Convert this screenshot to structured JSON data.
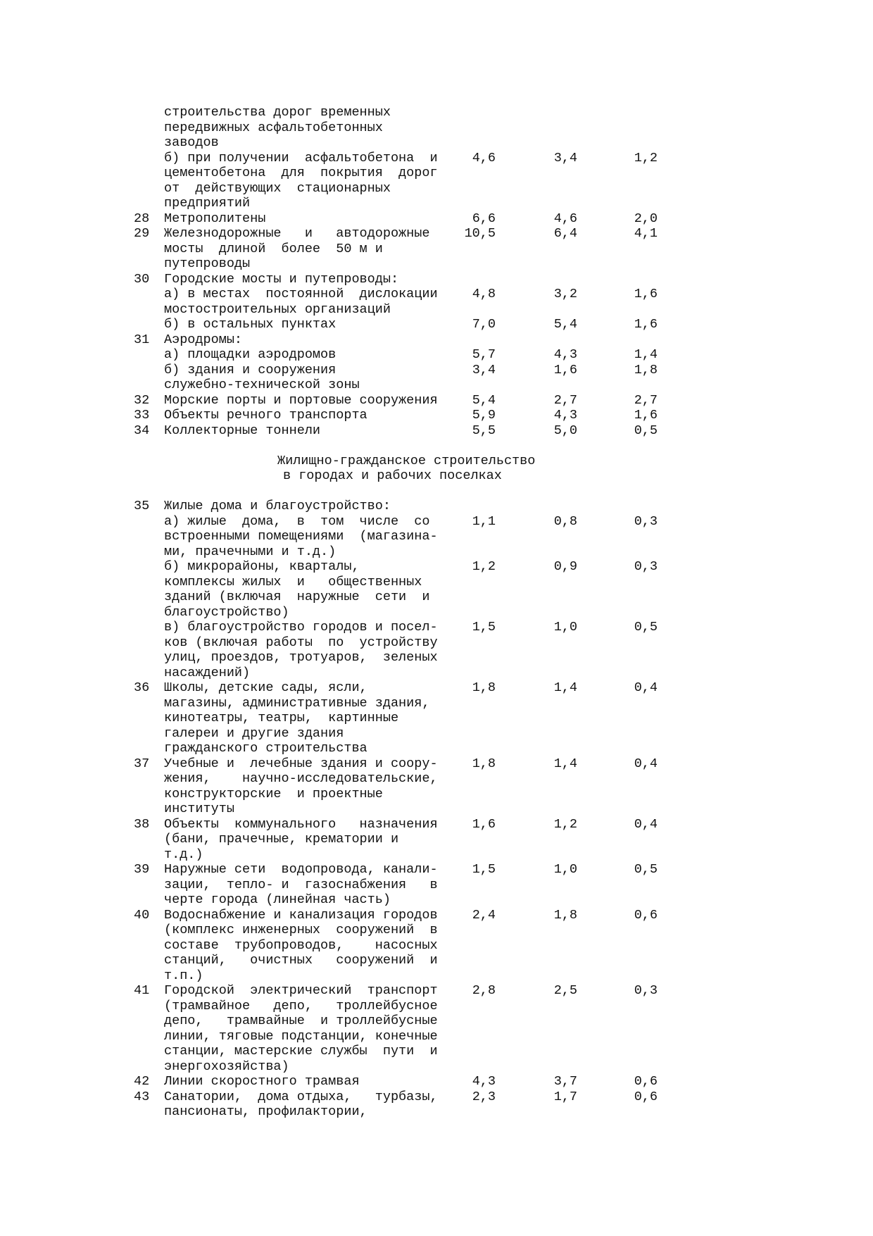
{
  "lines": [
    {
      "n": "",
      "t": "строительства дорог временных",
      "v": [
        "",
        "",
        ""
      ]
    },
    {
      "n": "",
      "t": "передвижных асфальтобетонных",
      "v": [
        "",
        "",
        ""
      ]
    },
    {
      "n": "",
      "t": "заводов",
      "v": [
        "",
        "",
        ""
      ]
    },
    {
      "n": "",
      "t": "б) при получении  асфальтобетона  и",
      "v": [
        "4,6",
        "3,4",
        "1,2"
      ]
    },
    {
      "n": "",
      "t": "цементобетона  для  покрытия  дорог",
      "v": [
        "",
        "",
        ""
      ]
    },
    {
      "n": "",
      "t": "от  действующих  стационарных",
      "v": [
        "",
        "",
        ""
      ]
    },
    {
      "n": "",
      "t": "предприятий",
      "v": [
        "",
        "",
        ""
      ]
    },
    {
      "n": "28",
      "t": "Метрополитены",
      "v": [
        "6,6",
        "4,6",
        "2,0"
      ]
    },
    {
      "n": "29",
      "t": "Железнодорожные   и   автодорожные",
      "v": [
        "10,5",
        "6,4",
        "4,1"
      ]
    },
    {
      "n": "",
      "t": "мосты  длиной  более  50 м и",
      "v": [
        "",
        "",
        ""
      ]
    },
    {
      "n": "",
      "t": "путепроводы",
      "v": [
        "",
        "",
        ""
      ]
    },
    {
      "n": "30",
      "t": "Городские мосты и путепроводы:",
      "v": [
        "",
        "",
        ""
      ]
    },
    {
      "n": "",
      "t": "а) в местах  постоянной  дислокации",
      "v": [
        "4,8",
        "3,2",
        "1,6"
      ]
    },
    {
      "n": "",
      "t": "мостостроительных организаций",
      "v": [
        "",
        "",
        ""
      ]
    },
    {
      "n": "",
      "t": "б) в остальных пунктах",
      "v": [
        "7,0",
        "5,4",
        "1,6"
      ]
    },
    {
      "n": "31",
      "t": "Аэродромы:",
      "v": [
        "",
        "",
        ""
      ]
    },
    {
      "n": "",
      "t": "а) площадки аэродромов",
      "v": [
        "5,7",
        "4,3",
        "1,4"
      ]
    },
    {
      "n": "",
      "t": "б) здания и сооружения",
      "v": [
        "3,4",
        "1,6",
        "1,8"
      ]
    },
    {
      "n": "",
      "t": "служебно-технической зоны",
      "v": [
        "",
        "",
        ""
      ]
    },
    {
      "n": "32",
      "t": "Морские порты и портовые сооружения",
      "v": [
        "5,4",
        "2,7",
        "2,7"
      ]
    },
    {
      "n": "33",
      "t": "Объекты речного транспорта",
      "v": [
        "5,9",
        "4,3",
        "1,6"
      ]
    },
    {
      "n": "34",
      "t": "Коллекторные тоннели",
      "v": [
        "5,5",
        "5,0",
        "0,5"
      ]
    },
    {
      "blank": true
    },
    {
      "h1": "Жилищно-гражданское строительство"
    },
    {
      "h2": "в городах и рабочих поселках"
    },
    {
      "blank": true
    },
    {
      "n": "35",
      "t": "Жилые дома и благоустройство:",
      "v": [
        "",
        "",
        ""
      ]
    },
    {
      "n": "",
      "t": "а) жилые  дома,  в  том  числе  со",
      "v": [
        "1,1",
        "0,8",
        "0,3"
      ]
    },
    {
      "n": "",
      "t": "встроенными помещениями  (магазина-",
      "v": [
        "",
        "",
        ""
      ]
    },
    {
      "n": "",
      "t": "ми, прачечными и т.д.)",
      "v": [
        "",
        "",
        ""
      ]
    },
    {
      "n": "",
      "t": "б) микрорайоны, кварталы,",
      "v": [
        "1,2",
        "0,9",
        "0,3"
      ]
    },
    {
      "n": "",
      "t": "комплексы жилых  и   общественных",
      "v": [
        "",
        "",
        ""
      ]
    },
    {
      "n": "",
      "t": "зданий (включая  наружные  сети  и",
      "v": [
        "",
        "",
        ""
      ]
    },
    {
      "n": "",
      "t": "благоустройство)",
      "v": [
        "",
        "",
        ""
      ]
    },
    {
      "n": "",
      "t": "в) благоустройство городов и посел-",
      "v": [
        "1,5",
        "1,0",
        "0,5"
      ]
    },
    {
      "n": "",
      "t": "ков (включая работы  по  устройству",
      "v": [
        "",
        "",
        ""
      ]
    },
    {
      "n": "",
      "t": "улиц, проездов, тротуаров,  зеленых",
      "v": [
        "",
        "",
        ""
      ]
    },
    {
      "n": "",
      "t": "насаждений)",
      "v": [
        "",
        "",
        ""
      ]
    },
    {
      "n": "36",
      "t": "Школы, детские сады, ясли,",
      "v": [
        "1,8",
        "1,4",
        "0,4"
      ]
    },
    {
      "n": "",
      "t": "магазины, административные здания,",
      "v": [
        "",
        "",
        ""
      ]
    },
    {
      "n": "",
      "t": "кинотеатры, театры,  картинные",
      "v": [
        "",
        "",
        ""
      ]
    },
    {
      "n": "",
      "t": "галереи и другие здания",
      "v": [
        "",
        "",
        ""
      ]
    },
    {
      "n": "",
      "t": "гражданского строительства",
      "v": [
        "",
        "",
        ""
      ]
    },
    {
      "n": "37",
      "t": "Учебные и  лечебные здания и соору-",
      "v": [
        "1,8",
        "1,4",
        "0,4"
      ]
    },
    {
      "n": "",
      "t": "жения,    научно-исследовательские,",
      "v": [
        "",
        "",
        ""
      ]
    },
    {
      "n": "",
      "t": "конструкторские  и проектные",
      "v": [
        "",
        "",
        ""
      ]
    },
    {
      "n": "",
      "t": "институты",
      "v": [
        "",
        "",
        ""
      ]
    },
    {
      "n": "38",
      "t": "Объекты  коммунального   назначения",
      "v": [
        "1,6",
        "1,2",
        "0,4"
      ]
    },
    {
      "n": "",
      "t": "(бани, прачечные, крематории и",
      "v": [
        "",
        "",
        ""
      ]
    },
    {
      "n": "",
      "t": "т.д.)",
      "v": [
        "",
        "",
        ""
      ]
    },
    {
      "n": "39",
      "t": "Наружные сети  водопровода, канали-",
      "v": [
        "1,5",
        "1,0",
        "0,5"
      ]
    },
    {
      "n": "",
      "t": "зации,  тепло- и  газоснабжения   в",
      "v": [
        "",
        "",
        ""
      ]
    },
    {
      "n": "",
      "t": "черте города (линейная часть)",
      "v": [
        "",
        "",
        ""
      ]
    },
    {
      "n": "40",
      "t": "Водоснабжение и канализация городов",
      "v": [
        "2,4",
        "1,8",
        "0,6"
      ]
    },
    {
      "n": "",
      "t": "(комплекс инженерных  сооружений  в",
      "v": [
        "",
        "",
        ""
      ]
    },
    {
      "n": "",
      "t": "составе  трубопроводов,    насосных",
      "v": [
        "",
        "",
        ""
      ]
    },
    {
      "n": "",
      "t": "станций,   очистных   сооружений  и",
      "v": [
        "",
        "",
        ""
      ]
    },
    {
      "n": "",
      "t": "т.п.)",
      "v": [
        "",
        "",
        ""
      ]
    },
    {
      "n": "41",
      "t": "Городской  электрический  транспорт",
      "v": [
        "2,8",
        "2,5",
        "0,3"
      ]
    },
    {
      "n": "",
      "t": "(трамвайное   депо,   троллейбусное",
      "v": [
        "",
        "",
        ""
      ]
    },
    {
      "n": "",
      "t": "депо,   трамвайные  и троллейбусные",
      "v": [
        "",
        "",
        ""
      ]
    },
    {
      "n": "",
      "t": "линии, тяговые подстанции, конечные",
      "v": [
        "",
        "",
        ""
      ]
    },
    {
      "n": "",
      "t": "станции, мастерские службы  пути  и",
      "v": [
        "",
        "",
        ""
      ]
    },
    {
      "n": "",
      "t": "энергохозяйства)",
      "v": [
        "",
        "",
        ""
      ]
    },
    {
      "n": "42",
      "t": "Линии скоростного трамвая",
      "v": [
        "4,3",
        "3,7",
        "0,6"
      ]
    },
    {
      "n": "43",
      "t": "Санатории,  дома отдыха,   турбазы,",
      "v": [
        "2,3",
        "1,7",
        "0,6"
      ]
    },
    {
      "n": "",
      "t": "пансионаты, профилактории,",
      "v": [
        "",
        "",
        ""
      ]
    }
  ]
}
